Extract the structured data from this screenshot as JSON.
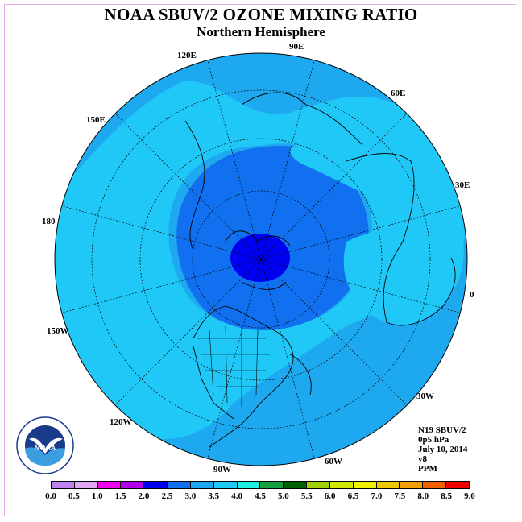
{
  "title": "NOAA SBUV/2 OZONE MIXING RATIO",
  "subtitle": "Northern Hemisphere",
  "longitude_labels": [
    "90E",
    "60E",
    "30E",
    "0",
    "30W",
    "60W",
    "90W",
    "120W",
    "150W",
    "180",
    "150E",
    "120E"
  ],
  "info": {
    "satellite": "N19 SBUV/2",
    "level": "0p5 hPa",
    "date": "July 10, 2014",
    "version": "v8",
    "units": "PPM"
  },
  "colorbar": {
    "ticks": [
      "0.0",
      "0.5",
      "1.0",
      "1.5",
      "2.0",
      "2.5",
      "3.0",
      "3.5",
      "4.0",
      "4.5",
      "5.0",
      "5.5",
      "6.0",
      "6.5",
      "7.0",
      "7.5",
      "8.0",
      "8.5",
      "9.0"
    ],
    "colors": [
      "#c080f0",
      "#e0a8f0",
      "#f000f0",
      "#b000f0",
      "#0000f0",
      "#1070f0",
      "#1ea8f0",
      "#20c8f8",
      "#20f0e0",
      "#10a040",
      "#006000",
      "#a0d000",
      "#d0e800",
      "#f0f000",
      "#f0c800",
      "#f0a000",
      "#f06000",
      "#f00000",
      "#806040"
    ]
  },
  "map_colors": {
    "outer": "#1ea8f0",
    "ring1": "#20c8f8",
    "ring2": "#1070f0",
    "core": "#0000f0"
  },
  "logo_text": "NOAA"
}
